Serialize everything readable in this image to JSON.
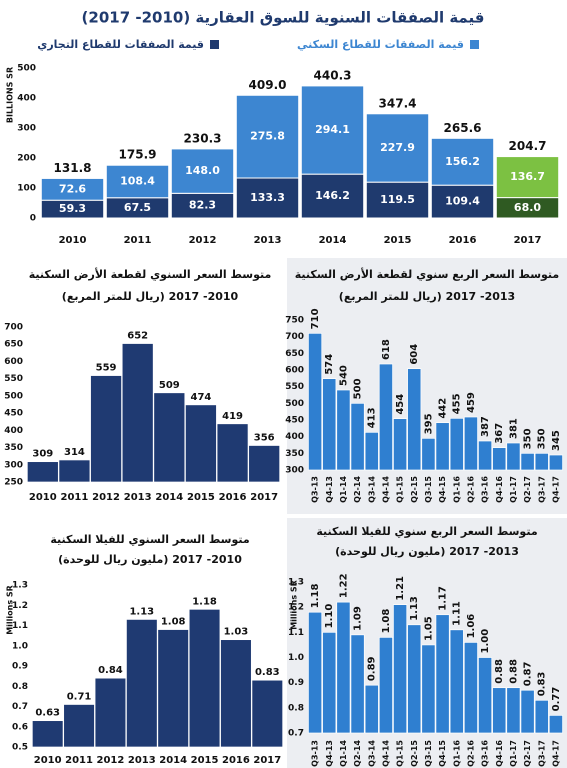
{
  "chart_data": [
    {
      "type": "bar",
      "stacked": true,
      "title": "قيمة الصفقات السنوية للسوق العقارية (2010- 2017)",
      "ylabel": "BILLIONS SR",
      "categories": [
        "2010",
        "2011",
        "2012",
        "2013",
        "2014",
        "2015",
        "2016",
        "2017"
      ],
      "series": [
        {
          "name": "قيمة الصفقات للقطاع التجاري",
          "colors": [
            "#1f3a6e",
            "#1f3a6e",
            "#1f3a6e",
            "#1f3a6e",
            "#1f3a6e",
            "#1f3a6e",
            "#1f3a6e",
            "#2f5a22"
          ],
          "values": [
            59.3,
            67.5,
            82.3,
            133.3,
            146.2,
            119.5,
            109.4,
            68.0
          ],
          "value_labels": [
            "59.3",
            "67.5",
            "82.3",
            "133.3",
            "146.2",
            "119.5",
            "109.4",
            "68.0"
          ]
        },
        {
          "name": "قيمة الصفقات للقطاع السكني",
          "colors": [
            "#3d86d1",
            "#3d86d1",
            "#3d86d1",
            "#3d86d1",
            "#3d86d1",
            "#3d86d1",
            "#3d86d1",
            "#7cc142"
          ],
          "values": [
            72.6,
            108.4,
            148.0,
            275.8,
            294.1,
            227.9,
            156.2,
            136.7
          ],
          "value_labels": [
            "72.6",
            "108.4",
            "148.0",
            "275.8",
            "294.1",
            "227.9",
            "156.2",
            "136.7"
          ]
        }
      ],
      "totals": [
        131.8,
        175.9,
        230.3,
        409.0,
        440.3,
        347.4,
        265.6,
        204.7
      ],
      "totals_labels": [
        "131.8",
        "175.9",
        "230.3",
        "409.0",
        "440.3",
        "347.4",
        "265.6",
        "204.7"
      ],
      "ylim": [
        0,
        500
      ],
      "yticks": [
        0,
        100,
        200,
        300,
        400,
        500
      ]
    },
    {
      "type": "bar",
      "title": "متوسط السعر السنوي لقطعة الأرض السكنية",
      "subtitle": "(ريال للمتر المربع) 2010- 2017",
      "color": "#1f3a72",
      "categories": [
        "2010",
        "2011",
        "2012",
        "2013",
        "2014",
        "2015",
        "2016",
        "2017"
      ],
      "values": [
        309,
        314,
        559,
        652,
        509,
        474,
        419,
        356
      ],
      "ylim": [
        250,
        700
      ],
      "yticks": [
        250,
        300,
        350,
        400,
        450,
        500,
        550,
        600,
        650,
        700
      ]
    },
    {
      "type": "bar",
      "title": "متوسط السعر الربع سنوي لقطعة الأرض السكنية",
      "subtitle": "(ريال للمتر المربع) 2013- 2017",
      "color": "#2f7fd0",
      "categories": [
        "Q3-13",
        "Q4-13",
        "Q1-14",
        "Q2-14",
        "Q3-14",
        "Q4-14",
        "Q1-15",
        "Q2-15",
        "Q3-15",
        "Q4-15",
        "Q1-16",
        "Q2-16",
        "Q3-16",
        "Q4-16",
        "Q1-17",
        "Q2-17",
        "Q3-17",
        "Q4-17"
      ],
      "values": [
        710,
        574,
        540,
        500,
        413,
        618,
        454,
        604,
        395,
        442,
        455,
        459,
        387,
        367,
        381,
        350,
        350,
        345
      ],
      "ylim": [
        300,
        750
      ],
      "yticks": [
        300,
        350,
        400,
        450,
        500,
        550,
        600,
        650,
        700,
        750
      ]
    },
    {
      "type": "bar",
      "title": "متوسط السعر السنوي للفيلا السكنية",
      "subtitle": "(مليون ريال للوحدة) 2010- 2017",
      "ylabel": "Millions SR",
      "color": "#1f3a72",
      "categories": [
        "2010",
        "2011",
        "2012",
        "2013",
        "2014",
        "2015",
        "2016",
        "2017"
      ],
      "values": [
        0.63,
        0.71,
        0.84,
        1.13,
        1.08,
        1.18,
        1.03,
        0.83
      ],
      "ylim": [
        0.5,
        1.3
      ],
      "yticks": [
        0.5,
        0.6,
        0.7,
        0.8,
        0.9,
        {
          "value": 1,
          "label": "1.0"
        },
        1.1,
        1.2,
        1.3
      ]
    },
    {
      "type": "bar",
      "title": "متوسط السعر الربع سنوي للفيلا السكنية",
      "subtitle": "(مليون ريال للوحدة) 2013- 2017",
      "ylabel": "Millions SR",
      "color": "#2f7fd0",
      "categories": [
        "Q3-13",
        "Q4-13",
        "Q1-14",
        "Q2-14",
        "Q3-14",
        "Q4-14",
        "Q1-15",
        "Q2-15",
        "Q3-15",
        "Q4-15",
        "Q1-16",
        "Q2-16",
        "Q3-16",
        "Q4-16",
        "Q1-17",
        "Q2-17",
        "Q3-17",
        "Q4-17"
      ],
      "values": [
        1.18,
        1.1,
        1.22,
        1.09,
        0.89,
        1.08,
        1.21,
        1.13,
        1.05,
        1.17,
        1.11,
        1.06,
        1.0,
        0.88,
        0.88,
        0.87,
        0.83,
        0.77
      ],
      "value_labels": [
        "1.18",
        "1.10",
        "1.22",
        "1.09",
        "0.89",
        "1.08",
        "1.21",
        "1.13",
        "1.05",
        "1.17",
        "1.11",
        "1.06",
        "1.00",
        "0.88",
        "0.88",
        "0.87",
        "0.83",
        "0.77"
      ],
      "ylim": [
        0.7,
        1.3
      ],
      "yticks": [
        0.7,
        0.8,
        0.9,
        {
          "value": 1,
          "label": "1.0"
        },
        1.1,
        1.2,
        1.3
      ]
    }
  ]
}
